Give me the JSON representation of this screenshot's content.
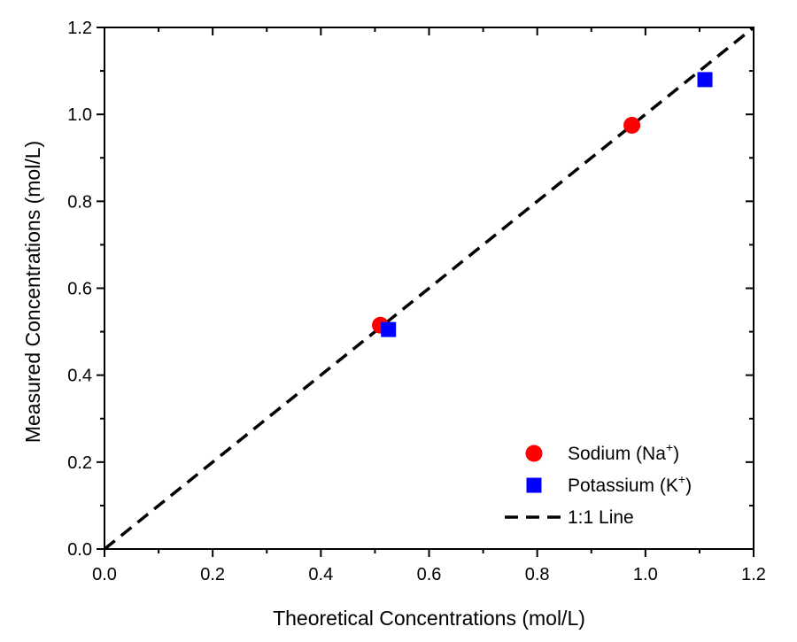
{
  "chart_data": {
    "type": "scatter",
    "xlabel": "Theoretical Concentrations (mol/L)",
    "ylabel": "Measured Concentrations (mol/L)",
    "xlim": [
      0.0,
      1.2
    ],
    "ylim": [
      0.0,
      1.2
    ],
    "x_ticks": [
      "0.0",
      "0.2",
      "0.4",
      "0.6",
      "0.8",
      "1.0",
      "1.2"
    ],
    "y_ticks": [
      "0.0",
      "0.2",
      "0.4",
      "0.6",
      "0.8",
      "1.0",
      "1.2"
    ],
    "series": [
      {
        "name": "Sodium (Na",
        "sup": "+",
        "name_suffix": ")",
        "marker": "circle",
        "color": "#ff0000",
        "points": [
          [
            0.51,
            0.515
          ],
          [
            0.975,
            0.975
          ]
        ]
      },
      {
        "name": "Potassium (K",
        "sup": "+",
        "name_suffix": ")",
        "marker": "square",
        "color": "#0000ff",
        "points": [
          [
            0.525,
            0.505
          ],
          [
            1.11,
            1.08
          ]
        ]
      }
    ],
    "reference_line": {
      "name": "1:1 Line",
      "style": "dashed",
      "color": "#000000",
      "from": [
        0.0,
        0.0
      ],
      "to": [
        1.2,
        1.2
      ]
    },
    "legend_position": "bottom-right",
    "grid": false
  }
}
